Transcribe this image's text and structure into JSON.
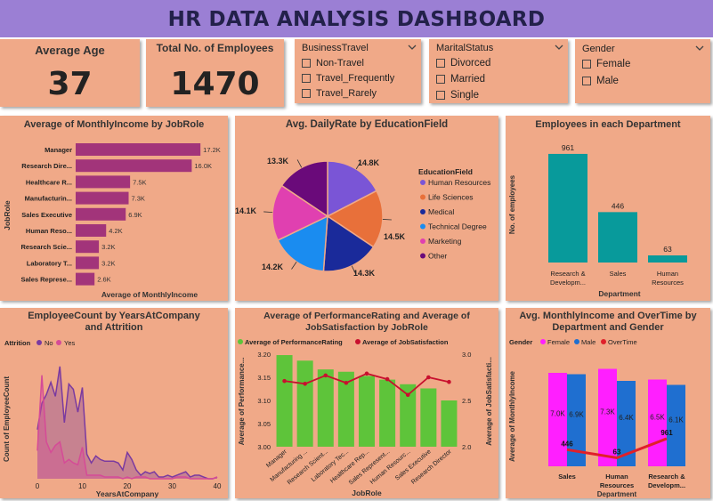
{
  "title": "HR DATA ANALYSIS DASHBOARD",
  "kpis": {
    "avg_age": {
      "label": "Average Age",
      "value": "37"
    },
    "total_employees": {
      "label": "Total No. of Employees",
      "value": "1470"
    }
  },
  "slicers": {
    "business_travel": {
      "title": "BusinessTravel",
      "items": [
        "Non-Travel",
        "Travel_Frequently",
        "Travel_Rarely"
      ]
    },
    "marital_status": {
      "title": "MaritalStatus",
      "items": [
        "Divorced",
        "Married",
        "Single"
      ]
    },
    "gender": {
      "title": "Gender",
      "items": [
        "Female",
        "Male"
      ]
    }
  },
  "colors": {
    "title_bar": "#9b7fd4",
    "panel": "#f0a988",
    "magenta_bar": "#a2347a",
    "teal": "#089a9b",
    "green": "#5ec43a",
    "red_line": "#c8102e",
    "female": "#ff1fff",
    "male": "#1f6fd0"
  },
  "chart_data": [
    {
      "id": "income_by_role",
      "type": "bar",
      "orientation": "horizontal",
      "title": "Average of MonthlyIncome by JobRole",
      "xlabel": "Average of MonthlyIncome",
      "ylabel": "JobRole",
      "categories": [
        "Manager",
        "Research Dire...",
        "Healthcare R...",
        "Manufacturin...",
        "Sales Executive",
        "Human Reso...",
        "Research Scie...",
        "Laboratory T...",
        "Sales Represe..."
      ],
      "values": [
        17200,
        16000,
        7500,
        7300,
        6900,
        4200,
        3200,
        3200,
        2600
      ],
      "labels": [
        "17.2K",
        "16.0K",
        "7.5K",
        "7.3K",
        "6.9K",
        "4.2K",
        "3.2K",
        "3.2K",
        "2.6K"
      ],
      "xlim": [
        0,
        20000
      ]
    },
    {
      "id": "dailyrate_by_edu",
      "type": "pie",
      "title": "Avg. DailyRate by EducationField",
      "legend_title": "EducationField",
      "categories": [
        "Human Resources",
        "Life Sciences",
        "Medical",
        "Technical Degree",
        "Marketing",
        "Other"
      ],
      "values": [
        14800,
        14500,
        14300,
        14200,
        14100,
        13300
      ],
      "labels": [
        "14.8K",
        "14.5K",
        "14.3K",
        "14.2K",
        "14.1K",
        "13.3K"
      ],
      "colors": [
        "#7a55d6",
        "#e8703a",
        "#1a2a9a",
        "#1a8cf0",
        "#e040b0",
        "#6a0a7a"
      ],
      "legend": "right"
    },
    {
      "id": "emp_by_dept",
      "type": "bar",
      "title": "Employees in each Department",
      "xlabel": "Department",
      "ylabel": "No. of employees",
      "categories": [
        "Research & Developm...",
        "Sales",
        "Human Resources"
      ],
      "values": [
        961,
        446,
        63
      ],
      "ylim": [
        0,
        1000
      ]
    },
    {
      "id": "count_by_years",
      "type": "area",
      "title": "EmployeeCount by YearsAtCompany and Attrition",
      "legend_title": "Attrition",
      "xlabel": "YearsAtCompany",
      "ylabel": "Count of EmployeeCount",
      "xlim": [
        0,
        40
      ],
      "x_ticks": [
        0,
        10,
        20,
        30,
        40
      ],
      "series": [
        {
          "name": "No",
          "color": "#7a3aa0",
          "x": [
            0,
            1,
            2,
            3,
            4,
            5,
            6,
            7,
            8,
            9,
            10,
            11,
            12,
            13,
            14,
            15,
            16,
            17,
            18,
            19,
            20,
            21,
            22,
            23,
            24,
            25,
            26,
            27,
            28,
            29,
            30,
            31,
            32,
            33,
            34,
            35,
            36,
            37,
            38,
            39,
            40
          ],
          "y": [
            28,
            43,
            48,
            55,
            47,
            64,
            32,
            54,
            51,
            38,
            52,
            14,
            9,
            13,
            11,
            10,
            10,
            10,
            9,
            5,
            15,
            11,
            5,
            2,
            4,
            3,
            4,
            1,
            1,
            2,
            1,
            2,
            3,
            4,
            1,
            2,
            2,
            1,
            0,
            0,
            1
          ]
        },
        {
          "name": "Yes",
          "color": "#d54b97",
          "x": [
            0,
            1,
            2,
            3,
            4,
            5,
            6,
            7,
            8,
            9,
            10,
            11,
            12,
            13,
            14,
            15,
            16,
            17,
            18,
            19,
            20,
            21,
            22,
            23,
            24,
            25,
            26,
            27,
            28,
            29,
            30,
            31,
            32,
            33,
            34,
            35,
            36,
            37,
            38,
            39,
            40
          ],
          "y": [
            16,
            59,
            21,
            15,
            19,
            21,
            9,
            11,
            9,
            8,
            18,
            2,
            2,
            2,
            2,
            1,
            1,
            1,
            1,
            0,
            1,
            0,
            1,
            1,
            1,
            0,
            0,
            0,
            0,
            0,
            0,
            1,
            1,
            1,
            0,
            0,
            0,
            0,
            0,
            0,
            1
          ]
        }
      ]
    },
    {
      "id": "perf_sat_by_role",
      "type": "bar",
      "title": "Average of PerformanceRating and Average of JobSatisfaction by JobRole",
      "xlabel": "JobRole",
      "ylabel": "Average of Performance...",
      "y2label": "Average of JobSatisfacti...",
      "categories": [
        "Manager",
        "Manufacturing ...",
        "Research Scient...",
        "Laboratory Tec...",
        "Healthcare Rep...",
        "Sales Represent...",
        "Human Resourc...",
        "Sales Executive",
        "Research Director"
      ],
      "ylim": [
        3.0,
        3.2
      ],
      "y_ticks": [
        "3.00",
        "3.05",
        "3.10",
        "3.15",
        "3.20"
      ],
      "y2lim": [
        2.0,
        3.0
      ],
      "y2_ticks": [
        "2.0",
        "2.5",
        "3.0"
      ],
      "series": [
        {
          "name": "Average of PerformanceRating",
          "type": "bar",
          "axis": "left",
          "color": "#5ec43a",
          "values": [
            3.198,
            3.186,
            3.167,
            3.162,
            3.153,
            3.145,
            3.135,
            3.126,
            3.1
          ]
        },
        {
          "name": "Average of JobSatisfaction",
          "type": "line",
          "axis": "right",
          "color": "#c8102e",
          "values": [
            2.71,
            2.68,
            2.77,
            2.69,
            2.79,
            2.73,
            2.56,
            2.75,
            2.7
          ]
        }
      ]
    },
    {
      "id": "income_overtime_dept_gender",
      "type": "bar",
      "title": "Avg. MonthlyIncome and OverTime by Department and Gender",
      "legend_title": "Gender",
      "xlabel": "Department",
      "ylabel": "Average of MonthlyIncome",
      "categories": [
        "Sales",
        "Human Resources",
        "Research & Developm..."
      ],
      "series": [
        {
          "name": "Female",
          "type": "bar",
          "color": "#ff1fff",
          "values": [
            7000,
            7300,
            6500
          ],
          "labels": [
            "7.0K",
            "7.3K",
            "6.5K"
          ]
        },
        {
          "name": "Male",
          "type": "bar",
          "color": "#1f6fd0",
          "values": [
            6900,
            6400,
            6100
          ],
          "labels": [
            "6.9K",
            "6.4K",
            "6.1K"
          ]
        },
        {
          "name": "OverTime",
          "type": "line",
          "color": "#e0202a",
          "values": [
            446,
            63,
            961
          ],
          "labels": [
            "446",
            "63",
            "961"
          ]
        }
      ],
      "ylim": [
        0,
        8000
      ]
    }
  ]
}
